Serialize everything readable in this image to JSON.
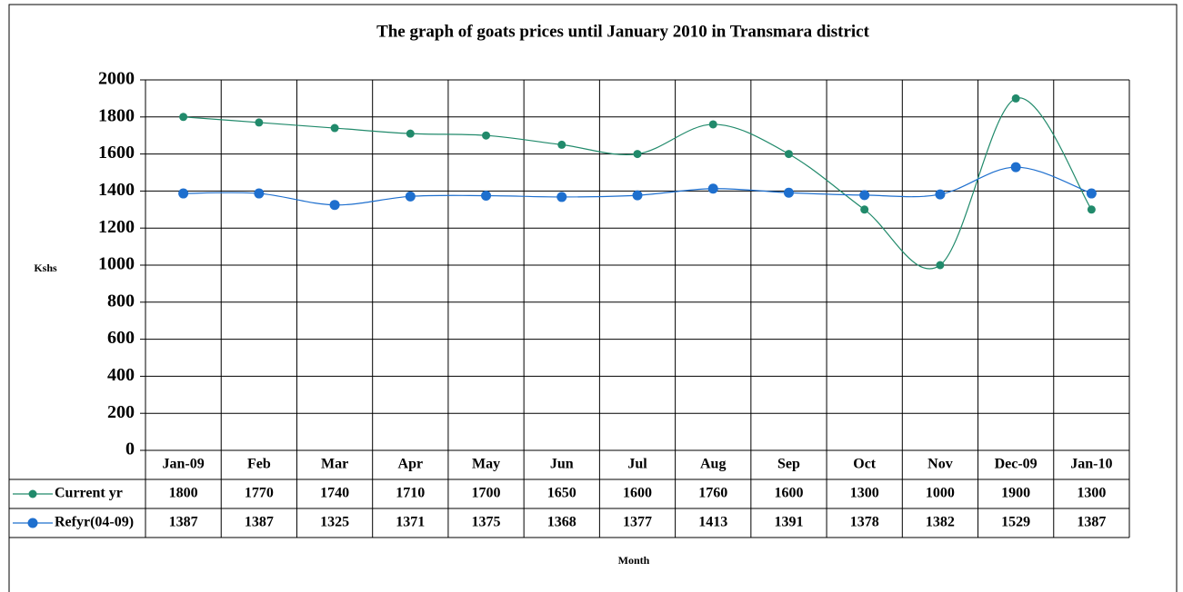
{
  "chart_data": {
    "type": "line",
    "title": "The graph of  goats prices  until January 2010 in Transmara district",
    "y_label": "Kshs",
    "x_label": "Month",
    "categories": [
      "Jan-09",
      "Feb",
      "Mar",
      "Apr",
      "May",
      "Jun",
      "Jul",
      "Aug",
      "Sep",
      "Oct",
      "Nov",
      "Dec-09",
      "Jan-10"
    ],
    "series": [
      {
        "name": "Current yr",
        "color": "#218a6b",
        "values": [
          1800,
          1770,
          1740,
          1710,
          1700,
          1650,
          1600,
          1760,
          1600,
          1300,
          1000,
          1900,
          1300
        ]
      },
      {
        "name": "Refyr(04-09)",
        "color": "#1e6fce",
        "values": [
          1387,
          1387,
          1325,
          1371,
          1375,
          1368,
          1377,
          1413,
          1391,
          1378,
          1382,
          1529,
          1387
        ]
      }
    ],
    "ylim": [
      0,
      2000
    ],
    "yticks": [
      0,
      200,
      400,
      600,
      800,
      1000,
      1200,
      1400,
      1600,
      1800,
      2000
    ],
    "grid": true,
    "smooth": true,
    "data_table": true
  }
}
